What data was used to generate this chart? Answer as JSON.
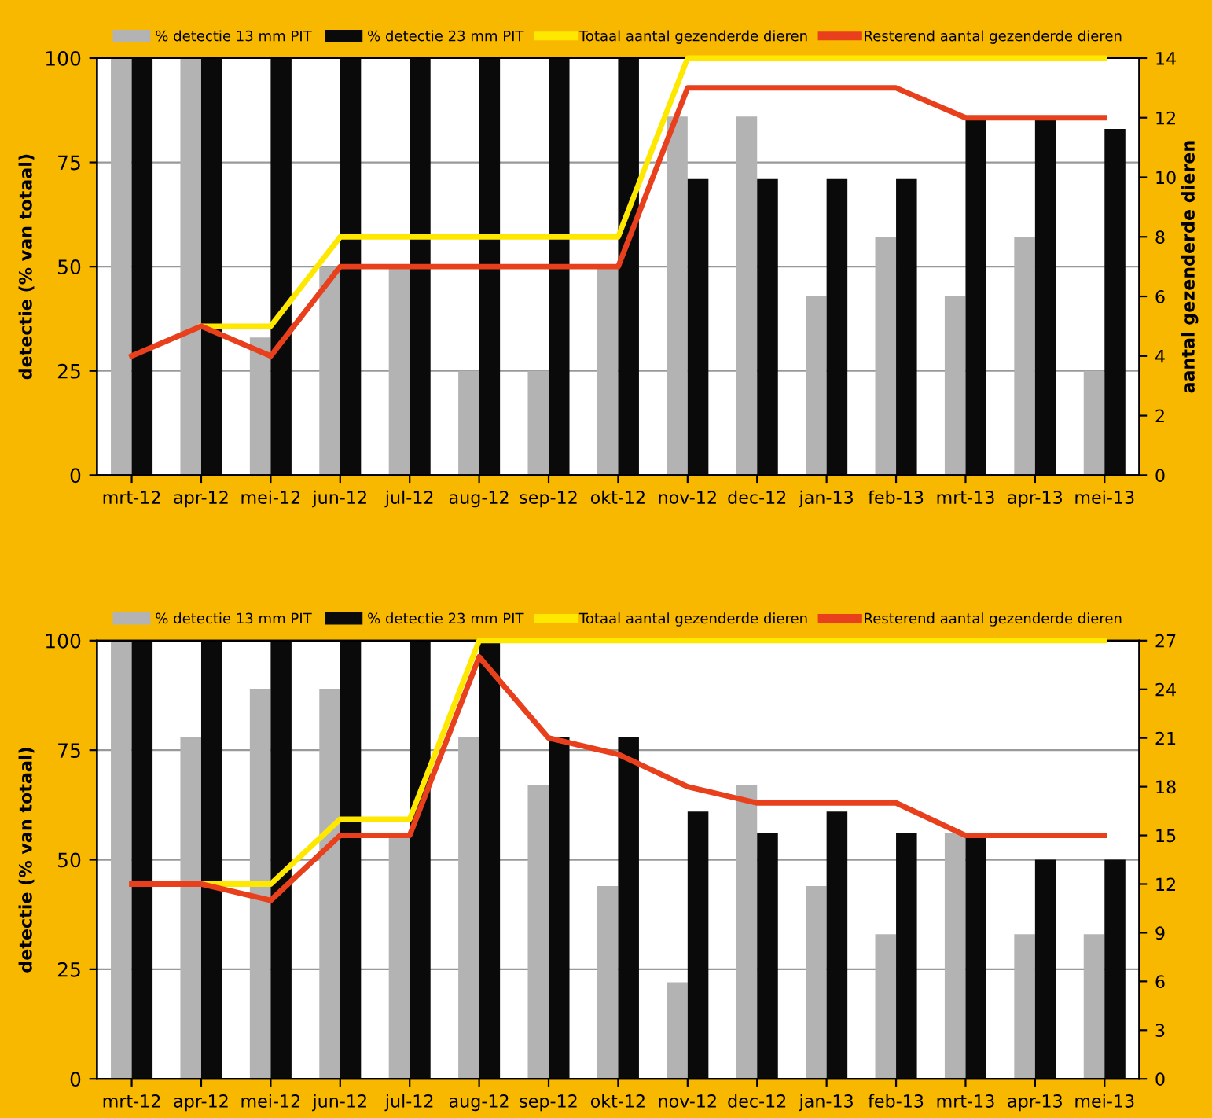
{
  "chart_data": [
    {
      "type": "bar",
      "ylabel": "detectie (% van totaal)",
      "y2label": "aantal gezenderde dieren",
      "categories": [
        "mrt-12",
        "apr-12",
        "mei-12",
        "jun-12",
        "jul-12",
        "aug-12",
        "sep-12",
        "okt-12",
        "nov-12",
        "dec-12",
        "jan-13",
        "feb-13",
        "mrt-13",
        "apr-13",
        "mei-13"
      ],
      "series": [
        {
          "name": "% detectie 13 mm PIT",
          "color": "#b3b3b3",
          "values": [
            100,
            100,
            33,
            50,
            50,
            25,
            25,
            50,
            86,
            86,
            43,
            57,
            43,
            57,
            25
          ]
        },
        {
          "name": "% detectie 23 mm PIT",
          "color": "#0a0a0a",
          "values": [
            100,
            100,
            100,
            100,
            100,
            100,
            100,
            100,
            71,
            71,
            71,
            71,
            86,
            86,
            83
          ]
        },
        {
          "name": "Totaal aantal gezenderde dieren",
          "type": "line",
          "axis": "y2",
          "color": "#ffe800",
          "values": [
            null,
            5,
            5,
            8,
            8,
            8,
            8,
            8,
            14,
            14,
            14,
            14,
            14,
            14,
            14
          ]
        },
        {
          "name": "Resterend aantal gezenderde dieren",
          "type": "line",
          "axis": "y2",
          "color": "#e8401c",
          "values": [
            4,
            5,
            4,
            7,
            7,
            7,
            7,
            7,
            13,
            13,
            13,
            13,
            12,
            12,
            12
          ]
        }
      ],
      "ylim": [
        0,
        100
      ],
      "yticks": [
        0,
        25,
        50,
        75,
        100
      ],
      "y2lim": [
        0,
        14
      ],
      "y2ticks": [
        0,
        2,
        4,
        6,
        8,
        10,
        12,
        14
      ],
      "grid": "y",
      "legend": "top",
      "marker": "none",
      "line_style": "solid"
    },
    {
      "type": "bar",
      "ylabel": "detectie (% van totaal)",
      "categories": [
        "mrt-12",
        "apr-12",
        "mei-12",
        "jun-12",
        "jul-12",
        "aug-12",
        "sep-12",
        "okt-12",
        "nov-12",
        "dec-12",
        "jan-13",
        "feb-13",
        "mrt-13",
        "apr-13",
        "mei-13"
      ],
      "series": [
        {
          "name": "% detectie 13 mm PIT",
          "color": "#b3b3b3",
          "values": [
            100,
            78,
            89,
            89,
            56,
            78,
            67,
            44,
            22,
            67,
            44,
            33,
            56,
            33,
            33
          ]
        },
        {
          "name": "% detectie 23 mm PIT",
          "color": "#0a0a0a",
          "values": [
            100,
            100,
            100,
            100,
            100,
            100,
            78,
            78,
            61,
            56,
            61,
            56,
            56,
            50,
            50
          ]
        },
        {
          "name": "Totaal aantal gezenderde dieren",
          "type": "line",
          "axis": "y2",
          "color": "#ffe800",
          "values": [
            null,
            12,
            12,
            16,
            16,
            27,
            27,
            27,
            27,
            27,
            27,
            27,
            27,
            27,
            27
          ]
        },
        {
          "name": "Resterend aantal gezenderde dieren",
          "type": "line",
          "axis": "y2",
          "color": "#e8401c",
          "values": [
            12,
            12,
            11,
            15,
            15,
            26,
            21,
            20,
            18,
            17,
            17,
            17,
            15,
            15,
            15
          ]
        }
      ],
      "ylim": [
        0,
        100
      ],
      "yticks": [
        0,
        25,
        50,
        75,
        100
      ],
      "y2lim": [
        0,
        27
      ],
      "y2ticks": [
        0,
        3,
        6,
        9,
        12,
        15,
        18,
        21,
        24,
        27
      ],
      "grid": "y",
      "legend": "top",
      "marker": "none",
      "line_style": "solid"
    }
  ]
}
